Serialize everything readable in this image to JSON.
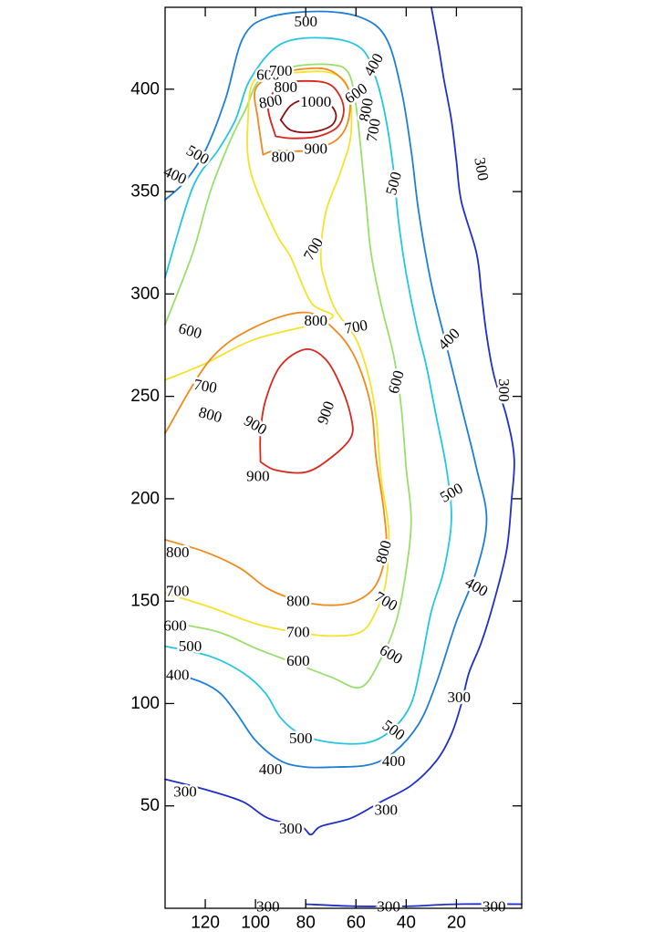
{
  "chart_data": {
    "type": "contour",
    "title": "",
    "xlabel": "",
    "ylabel": "",
    "xlim": [
      136,
      -6
    ],
    "ylim": [
      0,
      440
    ],
    "x_axis_reversed": true,
    "grid": false,
    "legend": "none",
    "x_ticks": [
      {
        "value": 120,
        "label": "120"
      },
      {
        "value": 100,
        "label": "100"
      },
      {
        "value": 80,
        "label": "80"
      },
      {
        "value": 60,
        "label": "60"
      },
      {
        "value": 40,
        "label": "40"
      },
      {
        "value": 20,
        "label": "20"
      }
    ],
    "y_ticks": [
      {
        "value": 50,
        "label": "50"
      },
      {
        "value": 100,
        "label": "100"
      },
      {
        "value": 150,
        "label": "150"
      },
      {
        "value": 200,
        "label": "200"
      },
      {
        "value": 250,
        "label": "250"
      },
      {
        "value": 300,
        "label": "300"
      },
      {
        "value": 350,
        "label": "350"
      },
      {
        "value": 400,
        "label": "400"
      }
    ],
    "levels": [
      {
        "value": 300,
        "color": "#1f2fc8"
      },
      {
        "value": 400,
        "color": "#1e7fd6"
      },
      {
        "value": 500,
        "color": "#25c6e0"
      },
      {
        "value": 600,
        "color": "#9adf6e"
      },
      {
        "value": 700,
        "color": "#f5e22a"
      },
      {
        "value": 800,
        "color": "#f08a1e"
      },
      {
        "value": 900,
        "color": "#d9261c"
      },
      {
        "value": 1000,
        "color": "#8c0f0f"
      }
    ],
    "contours": [
      {
        "level": 300,
        "points": [
          [
            136,
            63
          ],
          [
            120,
            58
          ],
          [
            105,
            52
          ],
          [
            95,
            44
          ],
          [
            82,
            40
          ],
          [
            78,
            36
          ],
          [
            74,
            40
          ],
          [
            62,
            44
          ],
          [
            50,
            52
          ],
          [
            38,
            60
          ],
          [
            28,
            72
          ],
          [
            22,
            85
          ],
          [
            18,
            100
          ],
          [
            15,
            115
          ],
          [
            10,
            130
          ],
          [
            5,
            150
          ],
          [
            0,
            175
          ],
          [
            -2,
            200
          ],
          [
            -3,
            220
          ],
          [
            0,
            240
          ],
          [
            5,
            260
          ],
          [
            8,
            280
          ],
          [
            10,
            300
          ],
          [
            12,
            320
          ],
          [
            18,
            345
          ],
          [
            20,
            365
          ],
          [
            22,
            385
          ],
          [
            25,
            405
          ],
          [
            27,
            420
          ],
          [
            30,
            440
          ]
        ]
      },
      {
        "level": 300,
        "points": [
          [
            80,
            2
          ],
          [
            60,
            1
          ],
          [
            40,
            1
          ],
          [
            20,
            2
          ],
          [
            -6,
            2
          ]
        ]
      },
      {
        "level": 400,
        "points": [
          [
            136,
            114
          ],
          [
            125,
            112
          ],
          [
            115,
            106
          ],
          [
            108,
            96
          ],
          [
            100,
            82
          ],
          [
            90,
            72
          ],
          [
            80,
            69
          ],
          [
            68,
            69
          ],
          [
            55,
            70
          ],
          [
            45,
            76
          ],
          [
            35,
            90
          ],
          [
            28,
            110
          ],
          [
            20,
            140
          ],
          [
            12,
            165
          ],
          [
            8,
            190
          ],
          [
            12,
            215
          ],
          [
            18,
            245
          ],
          [
            24,
            275
          ],
          [
            30,
            305
          ],
          [
            35,
            340
          ],
          [
            38,
            370
          ],
          [
            42,
            400
          ],
          [
            48,
            425
          ],
          [
            58,
            435
          ],
          [
            75,
            438
          ],
          [
            95,
            435
          ],
          [
            105,
            425
          ],
          [
            112,
            395
          ],
          [
            120,
            370
          ],
          [
            128,
            355
          ],
          [
            136,
            346
          ]
        ]
      },
      {
        "level": 500,
        "points": [
          [
            136,
            128
          ],
          [
            118,
            123
          ],
          [
            105,
            115
          ],
          [
            96,
            105
          ],
          [
            90,
            93
          ],
          [
            82,
            85
          ],
          [
            70,
            81
          ],
          [
            55,
            81
          ],
          [
            45,
            88
          ],
          [
            38,
            100
          ],
          [
            34,
            120
          ],
          [
            30,
            145
          ],
          [
            25,
            165
          ],
          [
            22,
            190
          ],
          [
            24,
            215
          ],
          [
            28,
            240
          ],
          [
            32,
            265
          ],
          [
            36,
            285
          ],
          [
            40,
            310
          ],
          [
            43,
            335
          ],
          [
            45,
            360
          ],
          [
            48,
            385
          ],
          [
            52,
            405
          ],
          [
            58,
            420
          ],
          [
            72,
            425
          ],
          [
            90,
            422
          ],
          [
            102,
            405
          ],
          [
            108,
            385
          ],
          [
            115,
            370
          ],
          [
            125,
            352
          ],
          [
            136,
            308
          ]
        ]
      },
      {
        "level": 600,
        "points": [
          [
            136,
            140
          ],
          [
            115,
            135
          ],
          [
            100,
            127
          ],
          [
            85,
            120
          ],
          [
            70,
            113
          ],
          [
            58,
            108
          ],
          [
            50,
            122
          ],
          [
            44,
            140
          ],
          [
            40,
            165
          ],
          [
            38,
            190
          ],
          [
            40,
            215
          ],
          [
            42,
            245
          ],
          [
            45,
            270
          ],
          [
            50,
            295
          ],
          [
            54,
            320
          ],
          [
            56,
            345
          ],
          [
            58,
            370
          ],
          [
            60,
            392
          ],
          [
            63,
            408
          ],
          [
            70,
            412
          ],
          [
            85,
            411
          ],
          [
            98,
            405
          ],
          [
            104,
            390
          ],
          [
            110,
            375
          ],
          [
            118,
            350
          ],
          [
            125,
            320
          ],
          [
            136,
            285
          ]
        ]
      },
      {
        "level": 700,
        "points": [
          [
            136,
            154
          ],
          [
            118,
            147
          ],
          [
            100,
            139
          ],
          [
            85,
            135
          ],
          [
            70,
            133
          ],
          [
            58,
            135
          ],
          [
            52,
            145
          ],
          [
            48,
            160
          ],
          [
            47,
            185
          ],
          [
            50,
            210
          ],
          [
            52,
            240
          ],
          [
            55,
            260
          ],
          [
            60,
            278
          ],
          [
            68,
            292
          ],
          [
            72,
            305
          ],
          [
            74,
            318
          ],
          [
            72,
            340
          ],
          [
            66,
            360
          ],
          [
            62,
            378
          ],
          [
            63,
            400
          ],
          [
            70,
            408
          ],
          [
            85,
            408
          ],
          [
            100,
            405
          ],
          [
            103,
            385
          ],
          [
            102,
            360
          ],
          [
            92,
            330
          ],
          [
            86,
            318
          ],
          [
            78,
            296
          ],
          [
            70,
            288
          ],
          [
            100,
            278
          ],
          [
            120,
            266
          ],
          [
            136,
            258
          ]
        ]
      },
      {
        "level": 800,
        "points": [
          [
            136,
            180
          ],
          [
            120,
            174
          ],
          [
            106,
            166
          ],
          [
            95,
            156
          ],
          [
            82,
            150
          ],
          [
            70,
            148
          ],
          [
            60,
            150
          ],
          [
            52,
            158
          ],
          [
            48,
            175
          ],
          [
            49,
            195
          ],
          [
            52,
            220
          ],
          [
            54,
            245
          ],
          [
            60,
            268
          ],
          [
            68,
            282
          ],
          [
            80,
            291
          ],
          [
            100,
            284
          ],
          [
            118,
            268
          ],
          [
            136,
            232
          ]
        ]
      },
      {
        "level": 800,
        "points": [
          [
            97,
            368
          ],
          [
            99,
            385
          ],
          [
            100,
            400
          ],
          [
            92,
            407
          ],
          [
            80,
            410
          ],
          [
            70,
            409
          ],
          [
            63,
            400
          ],
          [
            63,
            385
          ],
          [
            68,
            375
          ],
          [
            80,
            370
          ],
          [
            92,
            370
          ],
          [
            97,
            368
          ]
        ]
      },
      {
        "level": 900,
        "points": [
          [
            98,
            218
          ],
          [
            92,
            214
          ],
          [
            80,
            213
          ],
          [
            70,
            220
          ],
          [
            62,
            230
          ],
          [
            62,
            240
          ],
          [
            66,
            255
          ],
          [
            72,
            268
          ],
          [
            80,
            273
          ],
          [
            90,
            265
          ],
          [
            96,
            248
          ],
          [
            98,
            232
          ],
          [
            98,
            218
          ]
        ]
      },
      {
        "level": 900,
        "points": [
          [
            92,
            377
          ],
          [
            95,
            392
          ],
          [
            90,
            402
          ],
          [
            80,
            404
          ],
          [
            70,
            402
          ],
          [
            65,
            392
          ],
          [
            67,
            382
          ],
          [
            75,
            377
          ],
          [
            85,
            376
          ],
          [
            92,
            377
          ]
        ]
      },
      {
        "level": 1000,
        "points": [
          [
            90,
            385
          ],
          [
            86,
            392
          ],
          [
            80,
            395
          ],
          [
            72,
            394
          ],
          [
            68,
            388
          ],
          [
            70,
            382
          ],
          [
            78,
            379
          ],
          [
            86,
            380
          ],
          [
            90,
            385
          ]
        ]
      }
    ],
    "contour_labels": [
      {
        "text": "500",
        "x": 80,
        "y": 433,
        "angle": 0
      },
      {
        "text": "600",
        "x": 95,
        "y": 407,
        "angle": 0
      },
      {
        "text": "700",
        "x": 90,
        "y": 409,
        "angle": 0
      },
      {
        "text": "800",
        "x": 88,
        "y": 401,
        "angle": 0
      },
      {
        "text": "1000",
        "x": 76,
        "y": 394,
        "angle": 0
      },
      {
        "text": "800",
        "x": 94,
        "y": 394,
        "angle": -10
      },
      {
        "text": "600",
        "x": 60,
        "y": 398,
        "angle": -35
      },
      {
        "text": "400",
        "x": 53,
        "y": 412,
        "angle": -60
      },
      {
        "text": "800",
        "x": 56,
        "y": 390,
        "angle": -80
      },
      {
        "text": "700",
        "x": 53,
        "y": 380,
        "angle": -80
      },
      {
        "text": "900",
        "x": 76,
        "y": 371,
        "angle": 0
      },
      {
        "text": "800",
        "x": 89,
        "y": 367,
        "angle": 0
      },
      {
        "text": "500",
        "x": 123,
        "y": 368,
        "angle": 30
      },
      {
        "text": "400",
        "x": 132,
        "y": 358,
        "angle": 25
      },
      {
        "text": "500",
        "x": 45,
        "y": 354,
        "angle": -75
      },
      {
        "text": "300",
        "x": 10,
        "y": 361,
        "angle": 80
      },
      {
        "text": "700",
        "x": 77,
        "y": 322,
        "angle": -60
      },
      {
        "text": "600",
        "x": 126,
        "y": 282,
        "angle": 15
      },
      {
        "text": "800",
        "x": 76,
        "y": 287,
        "angle": 0
      },
      {
        "text": "700",
        "x": 60,
        "y": 284,
        "angle": -10
      },
      {
        "text": "400",
        "x": 23,
        "y": 278,
        "angle": -45
      },
      {
        "text": "700",
        "x": 120,
        "y": 255,
        "angle": 10
      },
      {
        "text": "600",
        "x": 44,
        "y": 257,
        "angle": -75
      },
      {
        "text": "300",
        "x": 1,
        "y": 253,
        "angle": 90
      },
      {
        "text": "800",
        "x": 118,
        "y": 241,
        "angle": 15
      },
      {
        "text": "900",
        "x": 100,
        "y": 236,
        "angle": 30
      },
      {
        "text": "900",
        "x": 72,
        "y": 242,
        "angle": -70
      },
      {
        "text": "900",
        "x": 99,
        "y": 211,
        "angle": 0
      },
      {
        "text": "500",
        "x": 22,
        "y": 203,
        "angle": -30
      },
      {
        "text": "800",
        "x": 131,
        "y": 174,
        "angle": 0
      },
      {
        "text": "800",
        "x": 49,
        "y": 174,
        "angle": -75
      },
      {
        "text": "400",
        "x": 12,
        "y": 157,
        "angle": 30
      },
      {
        "text": "700",
        "x": 131,
        "y": 155,
        "angle": 0
      },
      {
        "text": "800",
        "x": 83,
        "y": 150,
        "angle": 0
      },
      {
        "text": "700",
        "x": 48,
        "y": 150,
        "angle": 30
      },
      {
        "text": "600",
        "x": 132,
        "y": 138,
        "angle": 0
      },
      {
        "text": "700",
        "x": 83,
        "y": 135,
        "angle": 0
      },
      {
        "text": "600",
        "x": 46,
        "y": 124,
        "angle": 30
      },
      {
        "text": "500",
        "x": 126,
        "y": 128,
        "angle": 0
      },
      {
        "text": "600",
        "x": 83,
        "y": 121,
        "angle": 0
      },
      {
        "text": "400",
        "x": 131,
        "y": 114,
        "angle": 0
      },
      {
        "text": "300",
        "x": 19,
        "y": 103,
        "angle": 0
      },
      {
        "text": "500",
        "x": 45,
        "y": 87,
        "angle": 35
      },
      {
        "text": "500",
        "x": 82,
        "y": 83,
        "angle": 0
      },
      {
        "text": "400",
        "x": 45,
        "y": 72,
        "angle": 0
      },
      {
        "text": "400",
        "x": 94,
        "y": 68,
        "angle": 0
      },
      {
        "text": "300",
        "x": 128,
        "y": 57,
        "angle": 0
      },
      {
        "text": "300",
        "x": 48,
        "y": 48,
        "angle": 0
      },
      {
        "text": "300",
        "x": 86,
        "y": 39,
        "angle": 0
      },
      {
        "text": "300",
        "x": 95,
        "y": 1,
        "angle": 0
      },
      {
        "text": "300",
        "x": 47,
        "y": 1,
        "angle": 0
      },
      {
        "text": "300",
        "x": 5,
        "y": 1,
        "angle": 0
      }
    ]
  }
}
